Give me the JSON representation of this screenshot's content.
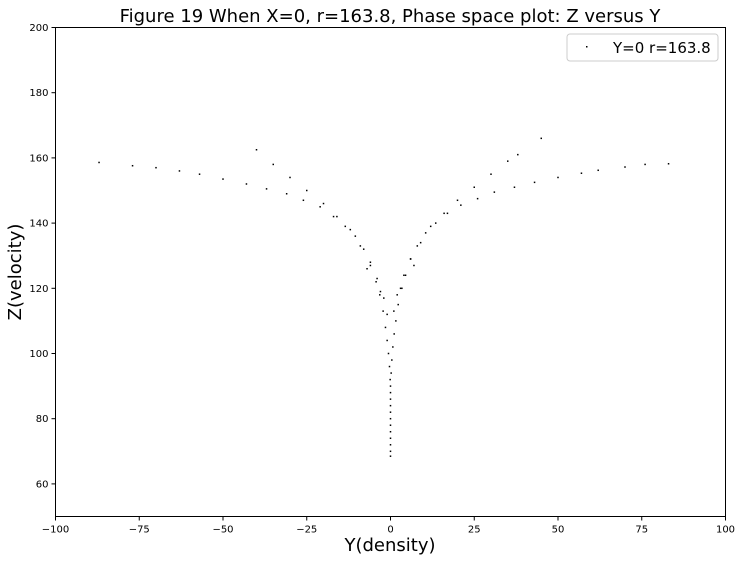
{
  "chart_data": {
    "type": "scatter",
    "title": "Figure 19 When X=0, r=163.8, Phase space plot: Z versus Y",
    "xlabel": "Y(density)",
    "ylabel": "Z(velocity)",
    "xlim": [
      -100,
      100
    ],
    "ylim": [
      50,
      200
    ],
    "xticks": [
      -100,
      -75,
      -50,
      -25,
      0,
      25,
      50,
      75,
      100
    ],
    "xtick_labels": [
      "−100",
      "−75",
      "−50",
      "−25",
      "0",
      "25",
      "50",
      "75",
      "100"
    ],
    "yticks": [
      60,
      80,
      100,
      120,
      140,
      160,
      180,
      200
    ],
    "ytick_labels": [
      "60",
      "80",
      "100",
      "120",
      "140",
      "160",
      "180",
      "200"
    ],
    "grid": false,
    "legend_position": "top-right",
    "series": [
      {
        "name": "Y=0 r=163.8",
        "color": "#000000",
        "marker": "pixel",
        "points": [
          [
            0,
            68.5
          ],
          [
            0,
            70
          ],
          [
            0,
            72
          ],
          [
            0,
            74
          ],
          [
            0,
            76
          ],
          [
            0,
            78
          ],
          [
            0,
            80
          ],
          [
            0,
            82
          ],
          [
            0,
            84
          ],
          [
            0,
            86
          ],
          [
            0,
            88
          ],
          [
            0,
            90
          ],
          [
            -0.1,
            92
          ],
          [
            0.2,
            94
          ],
          [
            -0.3,
            96
          ],
          [
            0.4,
            98
          ],
          [
            -0.6,
            100
          ],
          [
            0.7,
            102
          ],
          [
            -1.0,
            104
          ],
          [
            1.1,
            106
          ],
          [
            -1.5,
            108
          ],
          [
            1.6,
            110
          ],
          [
            -2.2,
            113
          ],
          [
            2.3,
            115
          ],
          [
            -3.2,
            118
          ],
          [
            3.4,
            120
          ],
          [
            -4.3,
            122
          ],
          [
            4.5,
            124
          ],
          [
            -6,
            127
          ],
          [
            6,
            129
          ],
          [
            -8,
            132
          ],
          [
            8,
            133
          ],
          [
            -10.5,
            136
          ],
          [
            10.5,
            137
          ],
          [
            -13.5,
            139
          ],
          [
            13.5,
            140
          ],
          [
            -17,
            142
          ],
          [
            17,
            143
          ],
          [
            -21,
            145
          ],
          [
            21,
            145.5
          ],
          [
            -26,
            147
          ],
          [
            26,
            147.5
          ],
          [
            -31,
            149
          ],
          [
            31,
            149.5
          ],
          [
            -37,
            150.5
          ],
          [
            37,
            151
          ],
          [
            -43,
            152
          ],
          [
            43,
            152.5
          ],
          [
            -50,
            153.5
          ],
          [
            50,
            154
          ],
          [
            -57,
            155
          ],
          [
            57,
            155.3
          ],
          [
            -63,
            156
          ],
          [
            62,
            156.2
          ],
          [
            -70,
            157
          ],
          [
            70,
            157.2
          ],
          [
            -77,
            157.6
          ],
          [
            76,
            158
          ],
          [
            83,
            158.2
          ],
          [
            -87,
            158.6
          ],
          [
            -1,
            112
          ],
          [
            1,
            113
          ],
          [
            -2,
            117
          ],
          [
            2,
            118
          ],
          [
            -4,
            123
          ],
          [
            4,
            124
          ],
          [
            -6,
            128
          ],
          [
            6,
            129
          ],
          [
            -9,
            133
          ],
          [
            9,
            134
          ],
          [
            -12,
            138
          ],
          [
            12,
            139
          ],
          [
            -16,
            142
          ],
          [
            16,
            143
          ],
          [
            -20,
            146
          ],
          [
            20,
            147
          ],
          [
            -25,
            150
          ],
          [
            25,
            151
          ],
          [
            -30,
            154
          ],
          [
            30,
            155
          ],
          [
            -35,
            158
          ],
          [
            35,
            159
          ],
          [
            38,
            161
          ],
          [
            -40,
            162.5
          ],
          [
            45,
            166
          ],
          [
            -3,
            119
          ],
          [
            3,
            120
          ],
          [
            -7,
            126
          ],
          [
            7,
            127
          ]
        ]
      }
    ]
  }
}
